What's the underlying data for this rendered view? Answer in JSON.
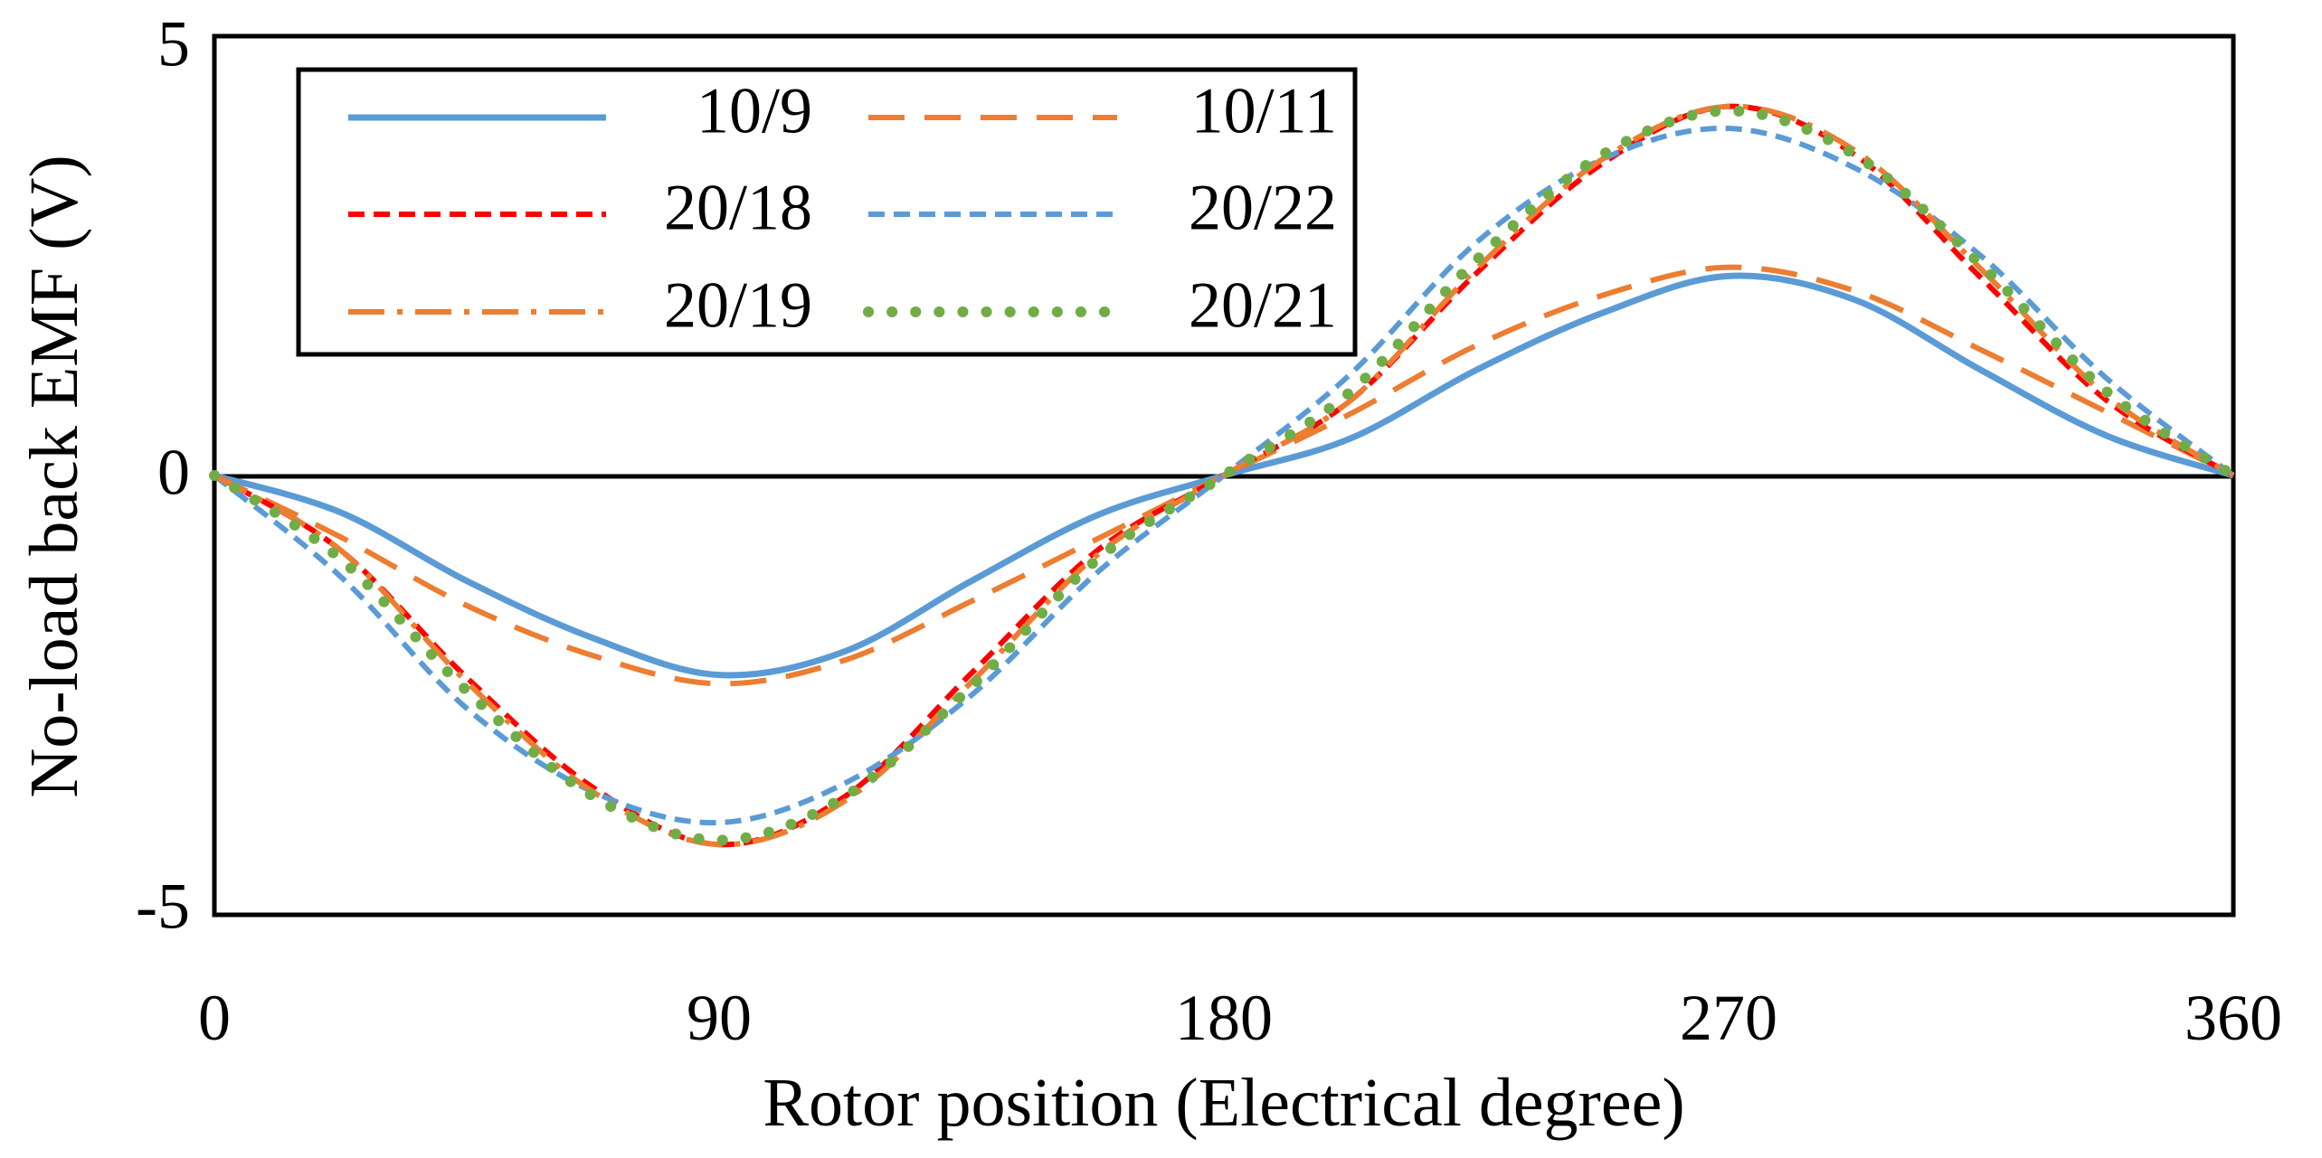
{
  "chart_data": {
    "type": "line",
    "title": "",
    "xlabel": "Rotor position (Electrical degree)",
    "ylabel": "No-load back EMF (V)",
    "xlim": [
      0,
      360
    ],
    "ylim": [
      -5,
      5
    ],
    "x_ticks": [
      0,
      90,
      180,
      270,
      360
    ],
    "y_ticks": [
      -5,
      0,
      5
    ],
    "x_tick_labels": [
      "0",
      "90",
      "180",
      "270",
      "360"
    ],
    "y_tick_labels": [
      "-5",
      "0",
      "5"
    ],
    "grid": false,
    "legend_position": "top-left",
    "x": [
      0,
      22.5,
      45,
      67.5,
      90,
      112.5,
      135,
      157.5,
      180,
      202.5,
      225,
      247.5,
      270,
      292.5,
      315,
      337.5,
      360
    ],
    "series": [
      {
        "name": "10/9",
        "color": "#5B9BD5",
        "dash": "solid",
        "values": [
          0,
          -0.42,
          -1.2,
          -1.85,
          -2.27,
          -2.0,
          -1.2,
          -0.45,
          0,
          0.42,
          1.2,
          1.85,
          2.27,
          2.0,
          1.2,
          0.45,
          0
        ]
      },
      {
        "name": "10/11",
        "color": "#ED7D31",
        "dash": "long-dash",
        "values": [
          0,
          -0.7,
          -1.48,
          -2.05,
          -2.37,
          -2.1,
          -1.43,
          -0.72,
          0,
          0.7,
          1.48,
          2.05,
          2.37,
          2.1,
          1.43,
          0.72,
          0
        ]
      },
      {
        "name": "20/18",
        "color": "#FF0000",
        "dash": "short-dash",
        "values": [
          0,
          -0.85,
          -2.3,
          -3.55,
          -4.2,
          -3.65,
          -2.25,
          -0.85,
          0,
          0.85,
          2.3,
          3.55,
          4.2,
          3.65,
          2.25,
          0.85,
          0
        ]
      },
      {
        "name": "20/22",
        "color": "#5B9BD5",
        "dash": "short-dash",
        "values": [
          0,
          -1.15,
          -2.65,
          -3.6,
          -3.95,
          -3.5,
          -2.5,
          -1.1,
          0,
          1.15,
          2.65,
          3.6,
          3.95,
          3.5,
          2.5,
          1.1,
          0
        ]
      },
      {
        "name": "20/19",
        "color": "#ED7D31",
        "dash": "dash-dot",
        "values": [
          0,
          -0.85,
          -2.35,
          -3.6,
          -4.2,
          -3.7,
          -2.35,
          -0.9,
          0,
          0.85,
          2.35,
          3.6,
          4.2,
          3.7,
          2.35,
          0.9,
          0
        ]
      },
      {
        "name": "20/21",
        "color": "#70AD47",
        "dash": "dotted",
        "values": [
          0,
          -0.95,
          -2.45,
          -3.65,
          -4.15,
          -3.65,
          -2.4,
          -0.95,
          0,
          0.95,
          2.45,
          3.65,
          4.15,
          3.65,
          2.4,
          0.95,
          0
        ]
      }
    ]
  }
}
